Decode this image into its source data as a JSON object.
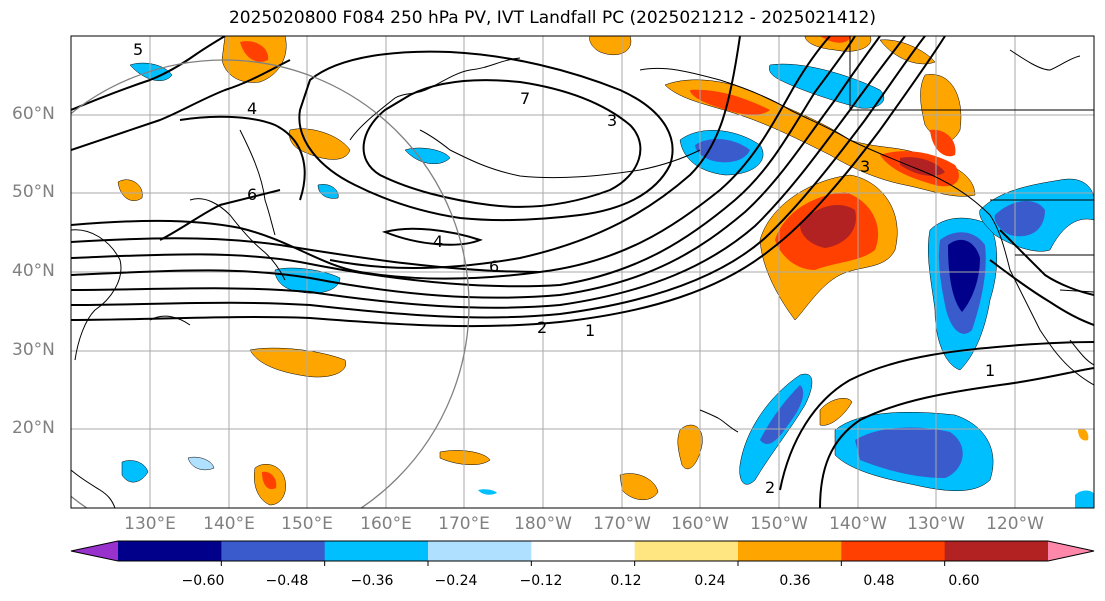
{
  "title": "2025020800 F084 250 hPa PV, IVT Landfall PC (2025021212 - 2025021412)",
  "lat_labels": [
    "60°N",
    "50°N",
    "40°N",
    "30°N",
    "20°N"
  ],
  "lon_labels": [
    "130°E",
    "140°E",
    "150°E",
    "160°E",
    "170°E",
    "180°W",
    "170°W",
    "160°W",
    "150°W",
    "140°W",
    "130°W",
    "120°W"
  ],
  "contour_labels": [
    "4",
    "6",
    "2",
    "1",
    "1",
    "2",
    "3",
    "5",
    "4",
    "6",
    "7",
    "3"
  ],
  "colorbar": {
    "ticks": [
      "−0.60",
      "−0.48",
      "−0.36",
      "−0.24",
      "−0.12",
      "0.12",
      "0.24",
      "0.36",
      "0.48",
      "0.60"
    ],
    "colors": [
      "#9932CC",
      "#00008B",
      "#3A5BCC",
      "#00BFFF",
      "#B0E0FF",
      "#FFFFFF",
      "#FFE680",
      "#FFA500",
      "#FF4000",
      "#B22222",
      "#FF88AA"
    ]
  }
}
